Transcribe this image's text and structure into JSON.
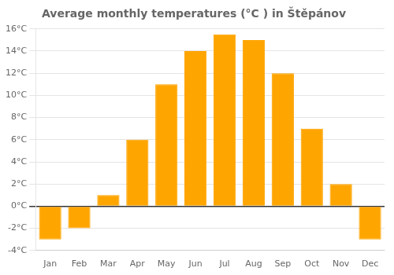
{
  "chart_data": {
    "type": "bar",
    "title": "Average monthly temperatures (°C ) in Štěpánov",
    "categories": [
      "Jan",
      "Feb",
      "Mar",
      "Apr",
      "May",
      "Jun",
      "Jul",
      "Aug",
      "Sep",
      "Oct",
      "Nov",
      "Dec"
    ],
    "values": [
      -3.0,
      -2.0,
      1.0,
      6.0,
      11.0,
      14.0,
      15.5,
      15.0,
      12.0,
      7.0,
      2.0,
      -3.0
    ],
    "color": "#FFA500",
    "ylim": [
      -4,
      16
    ],
    "yticks": [
      {
        "value": -4,
        "label": "-4°C"
      },
      {
        "value": -2,
        "label": "-2°C"
      },
      {
        "value": 0,
        "label": "0°C"
      },
      {
        "value": 2,
        "label": "2°C"
      },
      {
        "value": 4,
        "label": "4°C"
      },
      {
        "value": 6,
        "label": "6°C"
      },
      {
        "value": 8,
        "label": "8°C"
      },
      {
        "value": 10,
        "label": "10°C"
      },
      {
        "value": 12,
        "label": "12°C"
      },
      {
        "value": 14,
        "label": "14°C"
      },
      {
        "value": 16,
        "label": "16°C"
      }
    ],
    "grid": true
  }
}
